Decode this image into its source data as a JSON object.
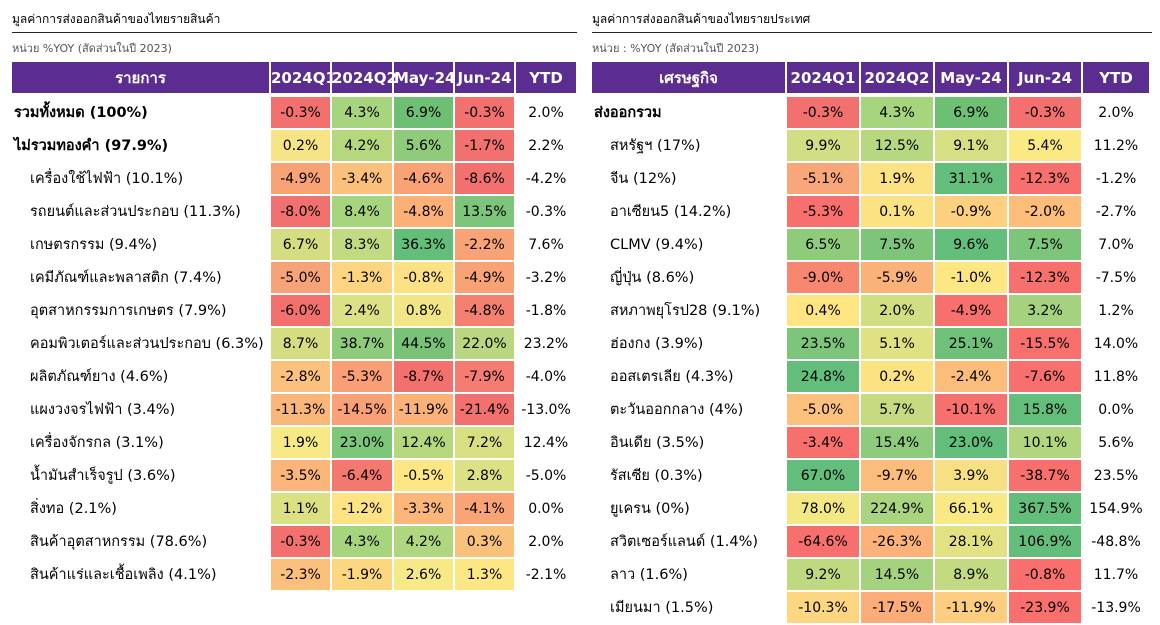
{
  "left": {
    "title": "มูลค่าการส่งออกสินค้าของไทยรายสินค้า",
    "unit": "หน่วย  %YOY (สัดส่วนในปี 2023)",
    "headers": [
      "รายการ",
      "2024Q1",
      "2024Q2",
      "May-24",
      "Jun-24",
      "YTD"
    ],
    "rows": [
      {
        "label": "รวมทั้งหมด (100%)",
        "bold": true,
        "sub": false,
        "cells": [
          {
            "v": "-0.3%",
            "c": "#f2716e"
          },
          {
            "v": "4.3%",
            "c": "#a6d57e"
          },
          {
            "v": "6.9%",
            "c": "#6cbf73"
          },
          {
            "v": "-0.3%",
            "c": "#f2716e"
          }
        ],
        "ytd": "2.0%"
      },
      {
        "label": "ไม่รวมทองคำ (97.9%)",
        "bold": true,
        "sub": false,
        "cells": [
          {
            "v": "0.2%",
            "c": "#f7e486"
          },
          {
            "v": "4.2%",
            "c": "#b5d87f"
          },
          {
            "v": "5.6%",
            "c": "#8ecb7a"
          },
          {
            "v": "-1.7%",
            "c": "#f2716e"
          }
        ],
        "ytd": "2.2%"
      },
      {
        "label": "เครื่องใช้ไฟฟ้า (10.1%)",
        "bold": false,
        "sub": true,
        "cells": [
          {
            "v": "-4.9%",
            "c": "#f9a276"
          },
          {
            "v": "-3.4%",
            "c": "#fbc07c"
          },
          {
            "v": "-4.6%",
            "c": "#f9a276"
          },
          {
            "v": "-8.6%",
            "c": "#f2716e"
          }
        ],
        "ytd": "-4.2%"
      },
      {
        "label": "รถยนต์และส่วนประกอบ (11.3%)",
        "bold": false,
        "sub": true,
        "cells": [
          {
            "v": "-8.0%",
            "c": "#f2716e"
          },
          {
            "v": "8.4%",
            "c": "#a6d57e"
          },
          {
            "v": "-4.8%",
            "c": "#fbb078"
          },
          {
            "v": "13.5%",
            "c": "#7dc57a"
          }
        ],
        "ytd": "-0.3%"
      },
      {
        "label": "เกษตรกรรม (9.4%)",
        "bold": false,
        "sub": true,
        "cells": [
          {
            "v": "6.7%",
            "c": "#d4dd82"
          },
          {
            "v": "8.3%",
            "c": "#c2da81"
          },
          {
            "v": "36.3%",
            "c": "#63be7b"
          },
          {
            "v": "-2.2%",
            "c": "#f8a377"
          }
        ],
        "ytd": "7.6%"
      },
      {
        "label": "เคมีภัณฑ์และพลาสติก (7.4%)",
        "bold": false,
        "sub": true,
        "cells": [
          {
            "v": "-5.0%",
            "c": "#f8a377"
          },
          {
            "v": "-1.3%",
            "c": "#fdd580"
          },
          {
            "v": "-0.8%",
            "c": "#fde283"
          },
          {
            "v": "-4.9%",
            "c": "#f9a276"
          }
        ],
        "ytd": "-3.2%"
      },
      {
        "label": "อุตสาหกรรมการเกษตร (7.9%)",
        "bold": false,
        "sub": true,
        "cells": [
          {
            "v": "-6.0%",
            "c": "#f2716e"
          },
          {
            "v": "2.4%",
            "c": "#dde185"
          },
          {
            "v": "0.8%",
            "c": "#f2e585"
          },
          {
            "v": "-4.8%",
            "c": "#f4806f"
          }
        ],
        "ytd": "-1.8%"
      },
      {
        "label": "คอมพิวเตอร์และส่วนประกอบ (6.3%)",
        "bold": false,
        "sub": true,
        "cells": [
          {
            "v": "8.7%",
            "c": "#d4dd82"
          },
          {
            "v": "38.7%",
            "c": "#8ecb7a"
          },
          {
            "v": "44.5%",
            "c": "#78c378"
          },
          {
            "v": "22.0%",
            "c": "#b8d780"
          }
        ],
        "ytd": "23.2%"
      },
      {
        "label": "ผลิตภัณฑ์ยาง (4.6%)",
        "bold": false,
        "sub": true,
        "cells": [
          {
            "v": "-2.8%",
            "c": "#fcc17c"
          },
          {
            "v": "-5.3%",
            "c": "#fa9e75"
          },
          {
            "v": "-8.7%",
            "c": "#f2716e"
          },
          {
            "v": "-7.9%",
            "c": "#f57c70"
          }
        ],
        "ytd": "-4.0%"
      },
      {
        "label": "แผงวงจรไฟฟ้า (3.4%)",
        "bold": false,
        "sub": true,
        "cells": [
          {
            "v": "-11.3%",
            "c": "#fbb679"
          },
          {
            "v": "-14.5%",
            "c": "#f9a076"
          },
          {
            "v": "-11.9%",
            "c": "#fbb278"
          },
          {
            "v": "-21.4%",
            "c": "#f2716e"
          }
        ],
        "ytd": "-13.0%"
      },
      {
        "label": "เครื่องจักรกล (3.1%)",
        "bold": false,
        "sub": true,
        "cells": [
          {
            "v": "1.9%",
            "c": "#f8e987"
          },
          {
            "v": "23.0%",
            "c": "#7ec77a"
          },
          {
            "v": "12.4%",
            "c": "#b5d87f"
          },
          {
            "v": "7.2%",
            "c": "#d8df83"
          }
        ],
        "ytd": "12.4%"
      },
      {
        "label": "น้ำมันสำเร็จรูป (3.6%)",
        "bold": false,
        "sub": true,
        "cells": [
          {
            "v": "-3.5%",
            "c": "#fbb479"
          },
          {
            "v": "-6.4%",
            "c": "#f3786f"
          },
          {
            "v": "-0.5%",
            "c": "#fde784"
          },
          {
            "v": "2.8%",
            "c": "#dde185"
          }
        ],
        "ytd": "-5.0%"
      },
      {
        "label": "สิ่งทอ (2.1%)",
        "bold": false,
        "sub": true,
        "cells": [
          {
            "v": "1.1%",
            "c": "#dbe083"
          },
          {
            "v": "-1.2%",
            "c": "#fde384"
          },
          {
            "v": "-3.3%",
            "c": "#fbb779"
          },
          {
            "v": "-4.1%",
            "c": "#f9a377"
          }
        ],
        "ytd": "0.0%"
      },
      {
        "label": "สินค้าอุตสาหกรรม (78.6%)",
        "bold": false,
        "sub": true,
        "cells": [
          {
            "v": "-0.3%",
            "c": "#f2716e"
          },
          {
            "v": "4.3%",
            "c": "#a6d57e"
          },
          {
            "v": "4.2%",
            "c": "#b0d77f"
          },
          {
            "v": "0.3%",
            "c": "#f8c27c"
          }
        ],
        "ytd": "2.0%"
      },
      {
        "label": "สินค้าแร่และเชื้อเพลิง (4.1%)",
        "bold": false,
        "sub": true,
        "cells": [
          {
            "v": "-2.3%",
            "c": "#fbc07c"
          },
          {
            "v": "-1.9%",
            "c": "#fdd680"
          },
          {
            "v": "2.6%",
            "c": "#f7e987"
          },
          {
            "v": "1.3%",
            "c": "#fde784"
          }
        ],
        "ytd": "-2.1%"
      }
    ]
  },
  "right": {
    "title": "มูลค่าการส่งออกสินค้าของไทยรายประเทศ",
    "unit": "หน่วย : %YOY (สัดส่วนในปี 2023)",
    "headers": [
      "เศรษฐกิจ",
      "2024Q1",
      "2024Q2",
      "May-24",
      "Jun-24",
      "YTD"
    ],
    "rows": [
      {
        "label": "ส่งออกรวม",
        "bold": true,
        "sub": false,
        "cells": [
          {
            "v": "-0.3%",
            "c": "#f2716e"
          },
          {
            "v": "4.3%",
            "c": "#a6d57e"
          },
          {
            "v": "6.9%",
            "c": "#6cbf73"
          },
          {
            "v": "-0.3%",
            "c": "#f2716e"
          }
        ],
        "ytd": "2.0%"
      },
      {
        "label": "สหรัฐฯ (17%)",
        "bold": false,
        "sub": true,
        "cells": [
          {
            "v": "9.9%",
            "c": "#d3de84"
          },
          {
            "v": "12.5%",
            "c": "#b7d881"
          },
          {
            "v": "9.1%",
            "c": "#d7df84"
          },
          {
            "v": "5.4%",
            "c": "#fbe983"
          }
        ],
        "ytd": "11.2%"
      },
      {
        "label": "จีน (12%)",
        "bold": false,
        "sub": true,
        "cells": [
          {
            "v": "-5.1%",
            "c": "#f9a77a"
          },
          {
            "v": "1.9%",
            "c": "#fde283"
          },
          {
            "v": "31.1%",
            "c": "#63be7b"
          },
          {
            "v": "-12.3%",
            "c": "#f8706d"
          }
        ],
        "ytd": "-1.2%"
      },
      {
        "label": "อาเซียน5 (14.2%)",
        "bold": false,
        "sub": true,
        "cells": [
          {
            "v": "-5.3%",
            "c": "#f8706d"
          },
          {
            "v": "0.1%",
            "c": "#fde283"
          },
          {
            "v": "-0.9%",
            "c": "#fdd07f"
          },
          {
            "v": "-2.0%",
            "c": "#fcbd7b"
          }
        ],
        "ytd": "-2.7%"
      },
      {
        "label": "CLMV (9.4%)",
        "bold": false,
        "sub": true,
        "cells": [
          {
            "v": "6.5%",
            "c": "#8ecb7a"
          },
          {
            "v": "7.5%",
            "c": "#7dc57a"
          },
          {
            "v": "9.6%",
            "c": "#63be7b"
          },
          {
            "v": "7.5%",
            "c": "#7dc57a"
          }
        ],
        "ytd": "7.0%"
      },
      {
        "label": "ญี่ปุ่น (8.6%)",
        "bold": false,
        "sub": true,
        "cells": [
          {
            "v": "-9.0%",
            "c": "#f8876f"
          },
          {
            "v": "-5.9%",
            "c": "#fbb279"
          },
          {
            "v": "-1.0%",
            "c": "#fee782"
          },
          {
            "v": "-12.3%",
            "c": "#f8706d"
          }
        ],
        "ytd": "-7.5%"
      },
      {
        "label": "สหภาพยุโรป28 (9.1%)",
        "bold": false,
        "sub": true,
        "cells": [
          {
            "v": "0.4%",
            "c": "#fee582"
          },
          {
            "v": "2.0%",
            "c": "#d2de82"
          },
          {
            "v": "-4.9%",
            "c": "#f8706d"
          },
          {
            "v": "3.2%",
            "c": "#a4d27e"
          }
        ],
        "ytd": "1.2%"
      },
      {
        "label": "ฮ่องกง (3.9%)",
        "bold": false,
        "sub": true,
        "cells": [
          {
            "v": "23.5%",
            "c": "#7dc57a"
          },
          {
            "v": "5.1%",
            "c": "#dfe183"
          },
          {
            "v": "25.1%",
            "c": "#6fc079"
          },
          {
            "v": "-15.5%",
            "c": "#f8706d"
          }
        ],
        "ytd": "14.0%"
      },
      {
        "label": "ออสเตรเลีย (4.3%)",
        "bold": false,
        "sub": true,
        "cells": [
          {
            "v": "24.8%",
            "c": "#63be7b"
          },
          {
            "v": "0.2%",
            "c": "#fde283"
          },
          {
            "v": "-2.4%",
            "c": "#fcbd7b"
          },
          {
            "v": "-7.6%",
            "c": "#f8706d"
          }
        ],
        "ytd": "11.8%"
      },
      {
        "label": "ตะวันออกกลาง (4%)",
        "bold": false,
        "sub": true,
        "cells": [
          {
            "v": "-5.0%",
            "c": "#fcc17c"
          },
          {
            "v": "5.7%",
            "c": "#c5da81"
          },
          {
            "v": "-10.1%",
            "c": "#f8706d"
          },
          {
            "v": "15.8%",
            "c": "#63be7b"
          }
        ],
        "ytd": "0.0%"
      },
      {
        "label": "อินเดีย (3.5%)",
        "bold": false,
        "sub": true,
        "cells": [
          {
            "v": "-3.4%",
            "c": "#f8706d"
          },
          {
            "v": "15.4%",
            "c": "#8fcb7d"
          },
          {
            "v": "23.0%",
            "c": "#63be7b"
          },
          {
            "v": "10.1%",
            "c": "#b2d680"
          }
        ],
        "ytd": "5.6%"
      },
      {
        "label": "รัสเซีย (0.3%)",
        "bold": false,
        "sub": true,
        "cells": [
          {
            "v": "67.0%",
            "c": "#63be7b"
          },
          {
            "v": "-9.7%",
            "c": "#fcbc7b"
          },
          {
            "v": "3.9%",
            "c": "#f7e083"
          },
          {
            "v": "-38.7%",
            "c": "#f8706d"
          }
        ],
        "ytd": "23.5%"
      },
      {
        "label": "ยูเครน (0%)",
        "bold": false,
        "sub": true,
        "cells": [
          {
            "v": "78.0%",
            "c": "#f4e884"
          },
          {
            "v": "224.9%",
            "c": "#aad47f"
          },
          {
            "v": "66.1%",
            "c": "#f8e984"
          },
          {
            "v": "367.5%",
            "c": "#63be7b"
          }
        ],
        "ytd": "154.9%"
      },
      {
        "label": "สวิตเซอร์แลนด์ (1.4%)",
        "bold": false,
        "sub": true,
        "cells": [
          {
            "v": "-64.6%",
            "c": "#f8706d"
          },
          {
            "v": "-26.3%",
            "c": "#fcb279"
          },
          {
            "v": "28.1%",
            "c": "#e2e283"
          },
          {
            "v": "106.9%",
            "c": "#63be7b"
          }
        ],
        "ytd": "-48.8%"
      },
      {
        "label": "ลาว (1.6%)",
        "bold": false,
        "sub": true,
        "cells": [
          {
            "v": "9.2%",
            "c": "#bfd981"
          },
          {
            "v": "14.5%",
            "c": "#a4d27e"
          },
          {
            "v": "8.9%",
            "c": "#c2da81"
          },
          {
            "v": "-0.8%",
            "c": "#f8706d"
          }
        ],
        "ytd": "11.7%"
      },
      {
        "label": "เมียนมา (1.5%)",
        "bold": false,
        "sub": true,
        "cells": [
          {
            "v": "-10.3%",
            "c": "#fdd681"
          },
          {
            "v": "-17.5%",
            "c": "#fbac78"
          },
          {
            "v": "-11.9%",
            "c": "#fdce80"
          },
          {
            "v": "-23.9%",
            "c": "#f8706d"
          }
        ],
        "ytd": "-13.9%"
      }
    ]
  }
}
